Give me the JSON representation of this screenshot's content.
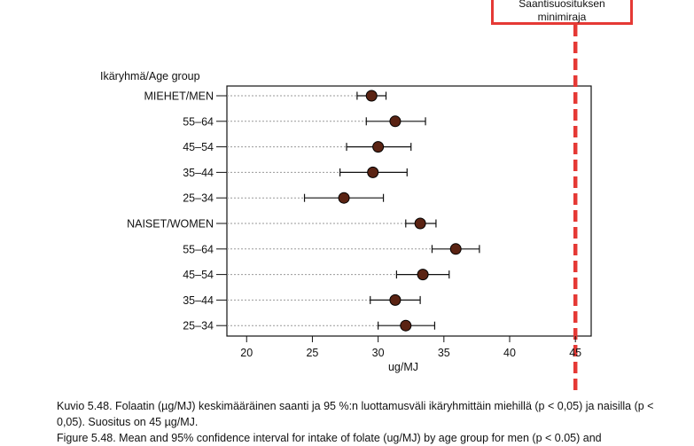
{
  "chart_data": {
    "type": "scatter",
    "subtype": "dot-and-whisker",
    "group_label": "Ikäryhmä/Age group",
    "xlabel": "ug/MJ",
    "xlim": [
      18.5,
      46.2
    ],
    "xticks": [
      20,
      25,
      30,
      35,
      40,
      45
    ],
    "reference_line": {
      "x": 45,
      "color": "#e53935",
      "label_lines": [
        "Saantisuosituksen",
        "minimiraja"
      ]
    },
    "categories": [
      "MIEHET/MEN",
      "55–64",
      "45–54",
      "35–44",
      "25–34",
      "NAISET/WOMEN",
      "55–64",
      "45–54",
      "35–44",
      "25–34"
    ],
    "values": [
      29.5,
      31.3,
      30.0,
      29.6,
      27.4,
      33.2,
      35.9,
      33.4,
      31.3,
      32.1
    ],
    "ci_low": [
      28.4,
      29.1,
      27.6,
      27.1,
      24.4,
      32.1,
      34.1,
      31.4,
      29.4,
      30.0
    ],
    "ci_high": [
      30.6,
      33.6,
      32.5,
      32.2,
      30.4,
      34.4,
      37.7,
      35.4,
      33.2,
      34.3
    ],
    "marker_color": "#5a2313",
    "grid": false
  },
  "caption": {
    "fi": "Kuvio 5.48. Folaatin (µg/MJ) keskimääräinen saanti ja 95 %:n luottamusväli ikäryhmittäin miehillä (p < 0,05) ja naisilla (p < 0,05). Suositus on 45 µg/MJ.",
    "en": "Figure 5.48. Mean and 95% confidence interval for intake of folate (ug/MJ) by age group for men (p < 0.05) and"
  }
}
